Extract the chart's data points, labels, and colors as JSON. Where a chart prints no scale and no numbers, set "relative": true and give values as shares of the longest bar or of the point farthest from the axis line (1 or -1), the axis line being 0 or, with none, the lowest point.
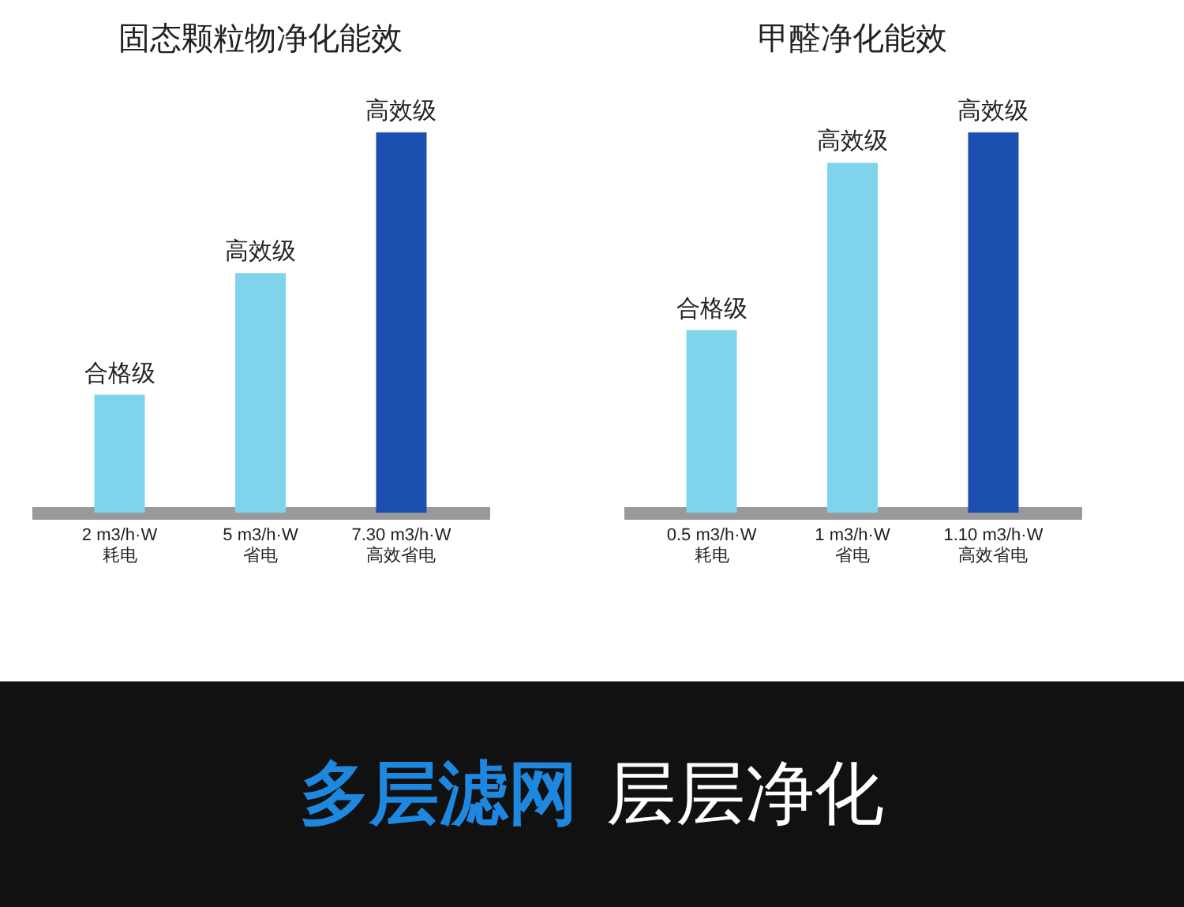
{
  "chart_data": [
    {
      "type": "bar",
      "title": "固态颗粒物净化能效",
      "relative": true,
      "categories": [
        "2 m3/h·W\n耗电",
        "5 m3/h·W\n省电",
        "7.30 m3/h·W\n高效省电"
      ],
      "values": [
        0.31,
        0.63,
        1
      ],
      "colors": [
        "#7fd3ea",
        "#7fd3ea",
        "#1a4fb0"
      ],
      "annotations": [
        {
          "text": "合格级",
          "x": "2 m3/h·W\n耗电",
          "y": 0.31
        },
        {
          "text": "高效级",
          "x": "5 m3/h·W\n省电",
          "y": 0.63
        },
        {
          "text": "高效级",
          "x": "7.30 m3/h·W\n高效省电",
          "y": 1
        }
      ]
    },
    {
      "type": "bar",
      "title": "甲醛净化能效",
      "relative": true,
      "categories": [
        "0.5 m3/h·W\n耗电",
        "1 m3/h·W\n省电",
        "1.10 m3/h·W\n高效省电"
      ],
      "values": [
        0.48,
        0.92,
        1
      ],
      "colors": [
        "#7fd3ea",
        "#7fd3ea",
        "#1a4fb0"
      ],
      "annotations": [
        {
          "text": "合格级",
          "x": "0.5 m3/h·W\n耗电",
          "y": 0.48
        },
        {
          "text": "高效级",
          "x": "1 m3/h·W\n省电",
          "y": 0.92
        },
        {
          "text": "高效级",
          "x": "1.10 m3/h·W\n高效省电",
          "y": 1
        }
      ]
    },
    {
      "type": "other",
      "title": "多层滤网",
      "subtitle": "层层净化"
    }
  ]
}
